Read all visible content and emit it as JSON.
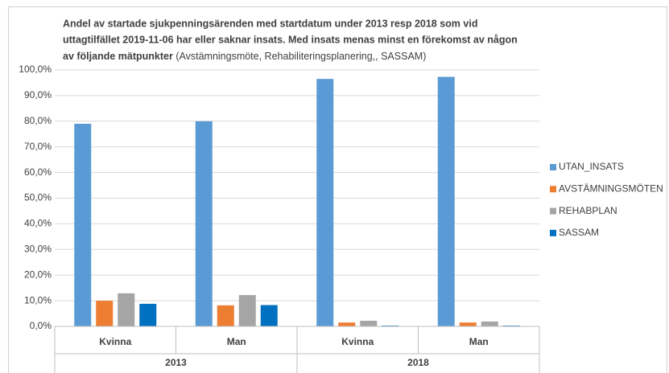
{
  "chart_data": {
    "type": "bar",
    "title_lines": [
      "Andel av startade sjukpenningsärenden med startdatum under 2013 resp 2018 som vid",
      "uttagtilfället 2019-11-06 har eller saknar insats. Med insats menas minst en förekomst av någon"
    ],
    "title_last_bold": "av följande mätpunkter",
    "title_last_normal": "(Avstämningsmöte, Rehabiliteringsplanering,, SASSAM)",
    "categories": [
      "Kvinna",
      "Man",
      "Kvinna",
      "Man"
    ],
    "category_groups": [
      "2013",
      "2018"
    ],
    "series": [
      {
        "name": "UTAN_INSATS",
        "color": "#5b9bd5",
        "values": [
          79.0,
          80.0,
          96.5,
          97.3
        ]
      },
      {
        "name": "AVSTÄMNINGSMÖTEN",
        "color": "#ed7d31",
        "values": [
          10.0,
          8.2,
          1.5,
          1.5
        ]
      },
      {
        "name": "REHABPLAN",
        "color": "#a5a5a5",
        "values": [
          12.9,
          12.2,
          2.2,
          1.9
        ]
      },
      {
        "name": "SASSAM",
        "color": "#0070c0",
        "values": [
          8.8,
          8.3,
          0.3,
          0.3
        ]
      }
    ],
    "ylim": [
      0,
      100
    ],
    "yticks": [
      {
        "value": 0,
        "label": "0,0%"
      },
      {
        "value": 10,
        "label": "10,0%"
      },
      {
        "value": 20,
        "label": "20,0%"
      },
      {
        "value": 30,
        "label": "30,0%"
      },
      {
        "value": 40,
        "label": "40,0%"
      },
      {
        "value": 50,
        "label": "50,0%"
      },
      {
        "value": 60,
        "label": "60,0%"
      },
      {
        "value": 70,
        "label": "70,0%"
      },
      {
        "value": 80,
        "label": "80,0%"
      },
      {
        "value": 90,
        "label": "90,0%"
      },
      {
        "value": 100,
        "label": "100,0%"
      }
    ],
    "grid": true,
    "legend": "right"
  }
}
